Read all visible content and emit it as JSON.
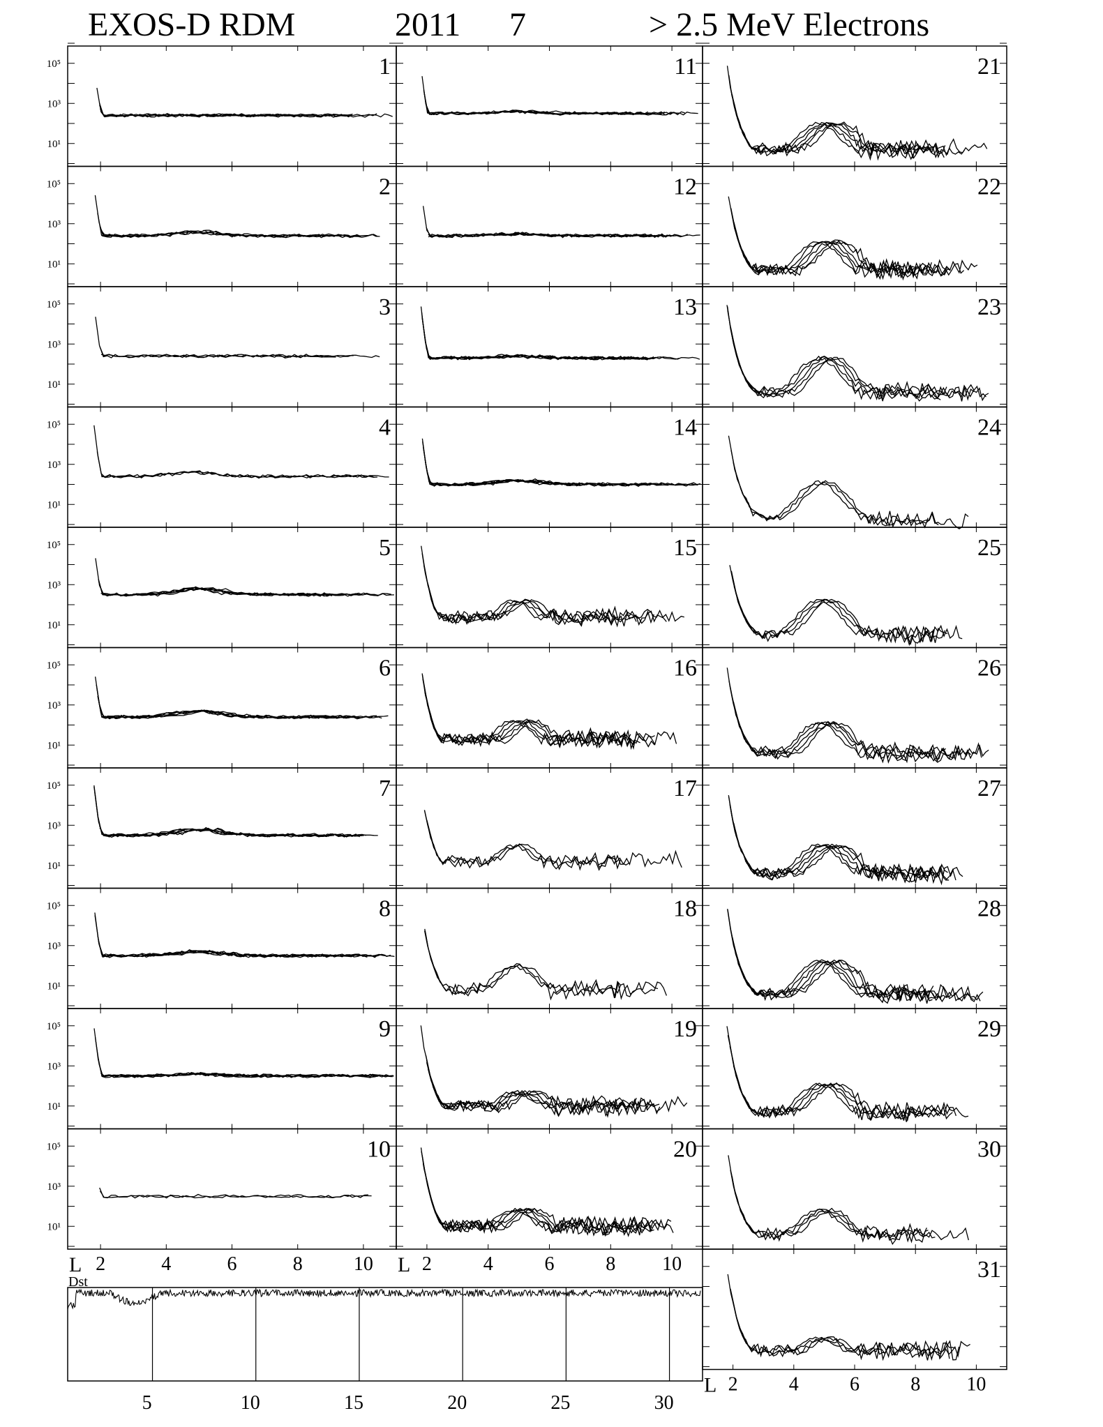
{
  "header": {
    "instrument": "EXOS-D RDM",
    "year": "2011",
    "month": "7",
    "particle": "> 2.5  MeV Electrons"
  },
  "colors": {
    "ink": "#000000",
    "background": "#ffffff"
  },
  "chart_data": {
    "type": "line",
    "y_scale": "log",
    "ylim_decades": [
      0,
      6
    ],
    "y_tick_labels": [
      "10⁵",
      "10³",
      "10¹"
    ],
    "x_tick_labels": [
      "2",
      "4",
      "6",
      "8",
      "10"
    ],
    "xlim_L": [
      1.0,
      11.0
    ],
    "axis_label": "L",
    "profile_styles": {
      "quiet": "days 1-14: steep fall from ~1e5 at L=1.8 to a flat level of ~3e2, small bump near L=4.5",
      "depleted": "days 15-31: fall to ~1e1 near L=3, outer belt hump ~1e2 at L=4.5-5, noisy decline beyond L=6"
    },
    "days": [
      {
        "day": "1",
        "style": "quiet",
        "n": 5,
        "bump": 2.4,
        "floor": 2.4
      },
      {
        "day": "2",
        "style": "quiet",
        "n": 5,
        "bump": 2.6,
        "floor": 2.4
      },
      {
        "day": "3",
        "style": "quiet",
        "n": 3,
        "bump": 2.4,
        "floor": 2.4
      },
      {
        "day": "4",
        "style": "quiet",
        "n": 3,
        "bump": 2.6,
        "floor": 2.4
      },
      {
        "day": "5",
        "style": "quiet",
        "n": 6,
        "bump": 2.8,
        "floor": 2.5
      },
      {
        "day": "6",
        "style": "quiet",
        "n": 6,
        "bump": 2.7,
        "floor": 2.4
      },
      {
        "day": "7",
        "style": "quiet",
        "n": 6,
        "bump": 2.8,
        "floor": 2.5
      },
      {
        "day": "8",
        "style": "quiet",
        "n": 6,
        "bump": 2.7,
        "floor": 2.5
      },
      {
        "day": "9",
        "style": "quiet",
        "n": 6,
        "bump": 2.6,
        "floor": 2.5
      },
      {
        "day": "10",
        "style": "quiet",
        "n": 2,
        "bump": 2.5,
        "floor": 2.5
      },
      {
        "day": "11",
        "style": "quiet",
        "n": 5,
        "bump": 2.6,
        "floor": 2.5
      },
      {
        "day": "12",
        "style": "quiet",
        "n": 5,
        "bump": 2.5,
        "floor": 2.4
      },
      {
        "day": "13",
        "style": "quiet",
        "n": 6,
        "bump": 2.4,
        "floor": 2.3
      },
      {
        "day": "14",
        "style": "quiet",
        "n": 6,
        "bump": 2.2,
        "floor": 2.0
      },
      {
        "day": "15",
        "style": "depleted",
        "n": 5,
        "bump": 2.2,
        "floor": 1.4
      },
      {
        "day": "16",
        "style": "depleted",
        "n": 6,
        "bump": 2.2,
        "floor": 1.3
      },
      {
        "day": "17",
        "style": "depleted",
        "n": 3,
        "bump": 2.0,
        "floor": 1.2
      },
      {
        "day": "18",
        "style": "depleted",
        "n": 3,
        "bump": 2.0,
        "floor": 0.8
      },
      {
        "day": "19",
        "style": "depleted",
        "n": 6,
        "bump": 1.7,
        "floor": 1.0
      },
      {
        "day": "20",
        "style": "depleted",
        "n": 6,
        "bump": 1.8,
        "floor": 1.0
      },
      {
        "day": "21",
        "style": "depleted",
        "n": 6,
        "bump": 2.0,
        "floor": 0.7
      },
      {
        "day": "22",
        "style": "depleted",
        "n": 6,
        "bump": 2.1,
        "floor": 0.7
      },
      {
        "day": "23",
        "style": "depleted",
        "n": 5,
        "bump": 2.3,
        "floor": 0.6
      },
      {
        "day": "24",
        "style": "depleted",
        "n": 3,
        "bump": 2.1,
        "floor": 0.2
      },
      {
        "day": "25",
        "style": "depleted",
        "n": 4,
        "bump": 2.2,
        "floor": 0.5
      },
      {
        "day": "26",
        "style": "depleted",
        "n": 5,
        "bump": 2.1,
        "floor": 0.6
      },
      {
        "day": "27",
        "style": "depleted",
        "n": 6,
        "bump": 2.0,
        "floor": 0.6
      },
      {
        "day": "28",
        "style": "depleted",
        "n": 6,
        "bump": 2.2,
        "floor": 0.6
      },
      {
        "day": "29",
        "style": "depleted",
        "n": 5,
        "bump": 2.1,
        "floor": 0.7
      },
      {
        "day": "30",
        "style": "depleted",
        "n": 4,
        "bump": 1.8,
        "floor": 0.6
      },
      {
        "day": "31",
        "style": "depleted",
        "n": 4,
        "bump": 1.4,
        "floor": 0.8
      }
    ],
    "dst": {
      "label": "Dst",
      "x_tick_labels": [
        "5",
        "10",
        "15",
        "20",
        "25",
        "30"
      ],
      "day_marks": [
        5,
        10,
        15,
        20,
        25,
        30
      ],
      "xlim_day": [
        1,
        31
      ],
      "trace": "quiet level near zero with a dip around days 3-5 and small fluctuations"
    }
  }
}
